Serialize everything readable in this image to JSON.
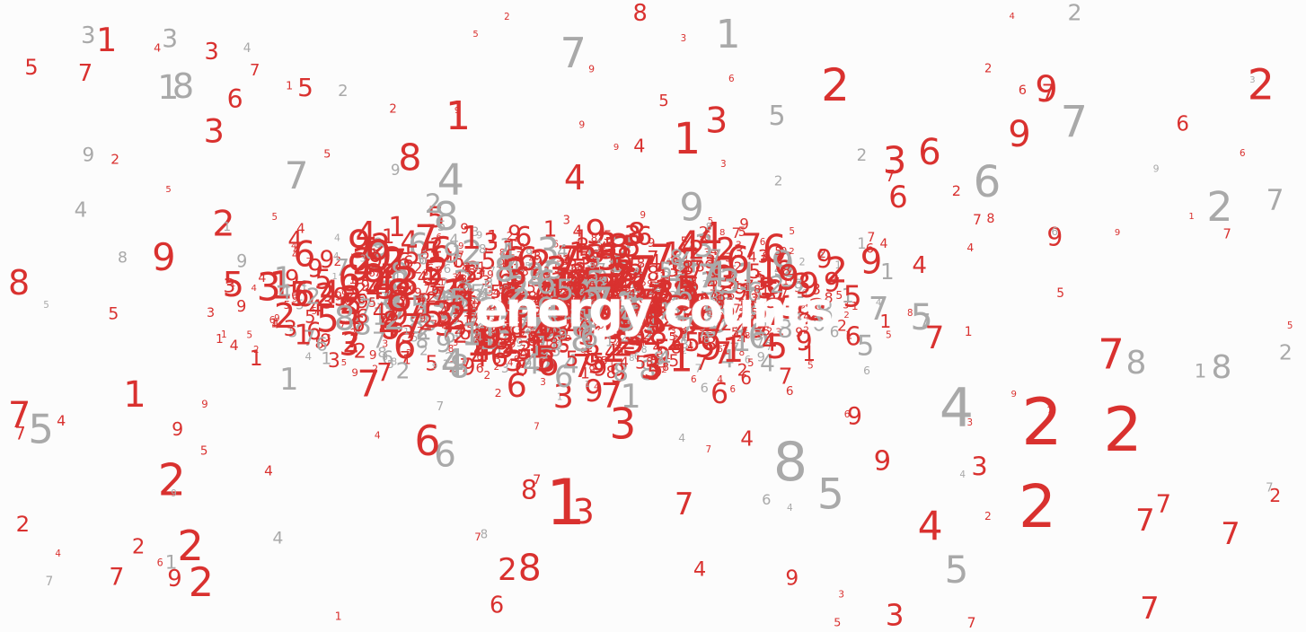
{
  "title": "energy counts",
  "colors": {
    "background": "#fcfcfc",
    "red": "#d9312f",
    "grey": "#a9a9a9",
    "headline": "#ffffff"
  },
  "digits": [
    "1",
    "2",
    "3",
    "4",
    "5",
    "6",
    "7",
    "8",
    "9"
  ]
}
